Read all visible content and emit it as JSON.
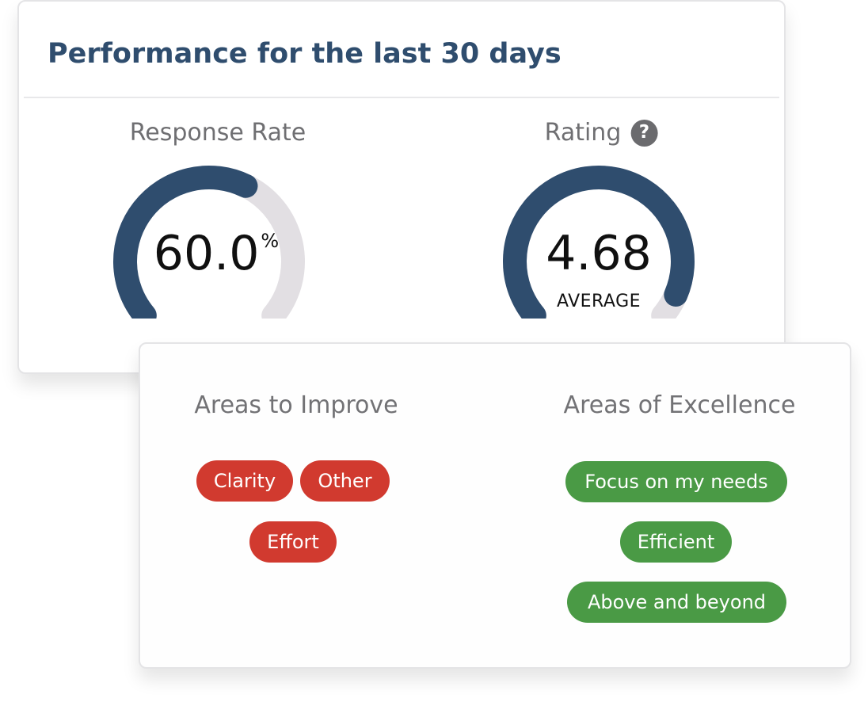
{
  "performance": {
    "title": "Performance for the last 30 days",
    "response_rate": {
      "label": "Response Rate",
      "value": "60.0",
      "unit": "%",
      "fill_fraction": 0.6
    },
    "rating": {
      "label": "Rating",
      "help_icon": "question-circle-icon",
      "value": "4.68",
      "caption": "AVERAGE",
      "fill_fraction": 0.936
    },
    "colors": {
      "title": "#2f4d6e",
      "gauge_fill": "#2f4d6e",
      "gauge_track": "#e2dfe3",
      "improve_pill": "#d13a2f",
      "excellence_pill": "#4a9a45"
    }
  },
  "areas": {
    "improve": {
      "heading": "Areas to Improve",
      "tags": [
        "Clarity",
        "Other",
        "Effort"
      ]
    },
    "excellence": {
      "heading": "Areas of Excellence",
      "tags": [
        "Focus on my needs",
        "Efficient",
        "Above and beyond"
      ]
    }
  }
}
